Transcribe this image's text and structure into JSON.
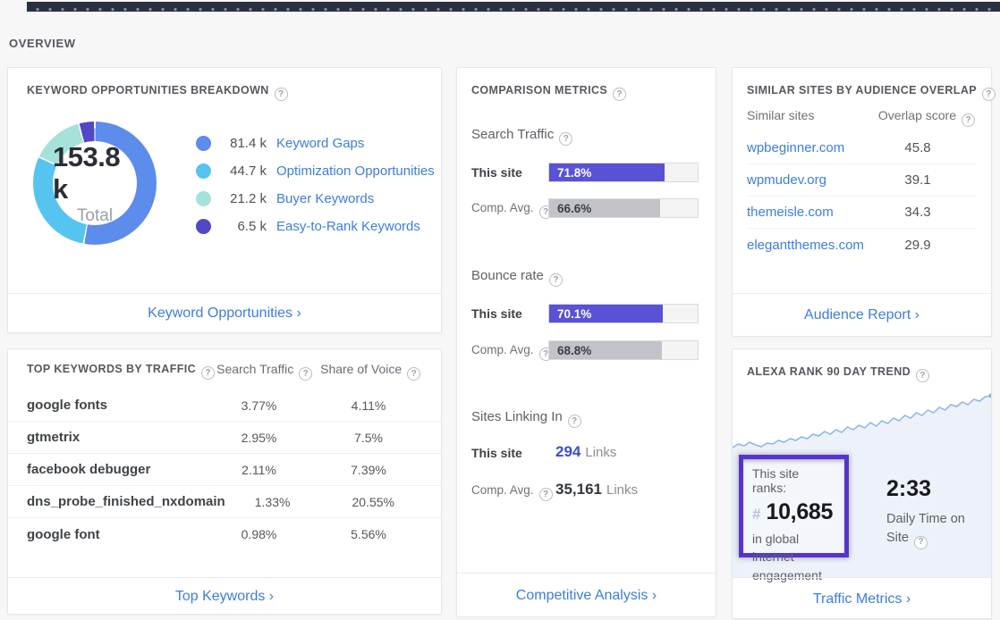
{
  "overview_label": "OVERVIEW",
  "icons": {
    "help": "?"
  },
  "colors": {
    "link_blue": "#3c7de2",
    "bar_this_site": "#5952d6",
    "bar_comp_avg": "#c2c3c8",
    "rank_box_border": "#5633d1",
    "top_strip": "#2a2f42"
  },
  "keyword_opportunities": {
    "title": "KEYWORD OPPORTUNITIES BREAKDOWN",
    "total_value": "153.8 k",
    "total_label": "Total",
    "legend": [
      {
        "value": "81.4 k",
        "label": "Keyword Gaps",
        "color": "#5c8cec"
      },
      {
        "value": "44.7 k",
        "label": "Optimization Opportunities",
        "color": "#56c4f1"
      },
      {
        "value": "21.2 k",
        "label": "Buyer Keywords",
        "color": "#a5e3da"
      },
      {
        "value": "6.5 k",
        "label": "Easy-to-Rank Keywords",
        "color": "#5247c7"
      }
    ],
    "footer_link": "Keyword Opportunities ›"
  },
  "top_keywords": {
    "title": "TOP KEYWORDS BY TRAFFIC",
    "col_search": "Search Traffic",
    "col_voice": "Share of Voice",
    "rows": [
      {
        "keyword": "google fonts",
        "search_traffic": "3.77%",
        "share_of_voice": "4.11%"
      },
      {
        "keyword": "gtmetrix",
        "search_traffic": "2.95%",
        "share_of_voice": "7.5%"
      },
      {
        "keyword": "facebook debugger",
        "search_traffic": "2.11%",
        "share_of_voice": "7.39%"
      },
      {
        "keyword": "dns_probe_finished_nxdomain",
        "search_traffic": "1.33%",
        "share_of_voice": "20.55%"
      },
      {
        "keyword": "google font",
        "search_traffic": "0.98%",
        "share_of_voice": "5.56%"
      }
    ],
    "footer_link": "Top Keywords ›"
  },
  "comparison_metrics": {
    "title": "COMPARISON METRICS",
    "search_traffic": {
      "label": "Search Traffic",
      "this_site": {
        "label": "This site",
        "value": "71.8%",
        "fill_pct": 78
      },
      "comp_avg": {
        "label": "Comp. Avg.",
        "value": "66.6%",
        "fill_pct": 74.5
      }
    },
    "bounce_rate": {
      "label": "Bounce rate",
      "this_site": {
        "label": "This site",
        "value": "70.1%",
        "fill_pct": 76.5
      },
      "comp_avg": {
        "label": "Comp. Avg.",
        "value": "68.8%",
        "fill_pct": 76
      }
    },
    "sites_linking_in": {
      "label": "Sites Linking In",
      "this_site": {
        "label": "This site",
        "value": "294",
        "unit": "Links"
      },
      "comp_avg": {
        "label": "Comp. Avg.",
        "value": "35,161",
        "unit": "Links"
      }
    },
    "footer_link": "Competitive Analysis ›"
  },
  "similar_sites": {
    "title": "SIMILAR SITES BY AUDIENCE OVERLAP",
    "col_site": "Similar sites",
    "col_score": "Overlap score",
    "rows": [
      {
        "site": "wpbeginner.com",
        "score": "45.8"
      },
      {
        "site": "wpmudev.org",
        "score": "39.1"
      },
      {
        "site": "themeisle.com",
        "score": "34.3"
      },
      {
        "site": "elegantthemes.com",
        "score": "29.9"
      }
    ],
    "footer_link": "Audience Report ›"
  },
  "alexa_rank": {
    "title": "ALEXA RANK 90 DAY TREND",
    "rank_intro": "This site ranks:",
    "rank_hash": "#",
    "rank_value": "10,685",
    "rank_caption": "in global internet engagement",
    "time_value": "2:33",
    "time_caption_line1": "Daily Time on",
    "time_caption_line2": "Site",
    "footer_link": "Traffic Metrics ›"
  },
  "chart_data": [
    {
      "type": "pie",
      "donut": true,
      "title": "Keyword Opportunities Breakdown",
      "center_label": "153.8 k Total",
      "categories": [
        "Keyword Gaps",
        "Optimization Opportunities",
        "Buyer Keywords",
        "Easy-to-Rank Keywords"
      ],
      "values_k": [
        81.4,
        44.7,
        21.2,
        6.5
      ],
      "colors": [
        "#5c8cec",
        "#56c4f1",
        "#a5e3da",
        "#5247c7"
      ]
    },
    {
      "type": "line",
      "title": "Alexa Rank 90 Day Trend",
      "x_range_days": 90,
      "line_color": "#8ab5e8",
      "fill_color": "#edf2fa",
      "values": [
        70,
        66,
        68,
        64,
        67,
        69,
        65,
        66,
        62,
        64,
        60,
        62,
        58,
        60,
        55,
        57,
        52,
        55,
        50,
        53,
        47,
        50,
        45,
        48,
        42,
        46,
        40,
        43,
        37,
        40,
        34,
        37,
        31,
        34,
        28,
        31,
        25,
        28,
        22,
        24,
        19,
        22,
        16,
        18,
        13,
        12
      ]
    }
  ]
}
